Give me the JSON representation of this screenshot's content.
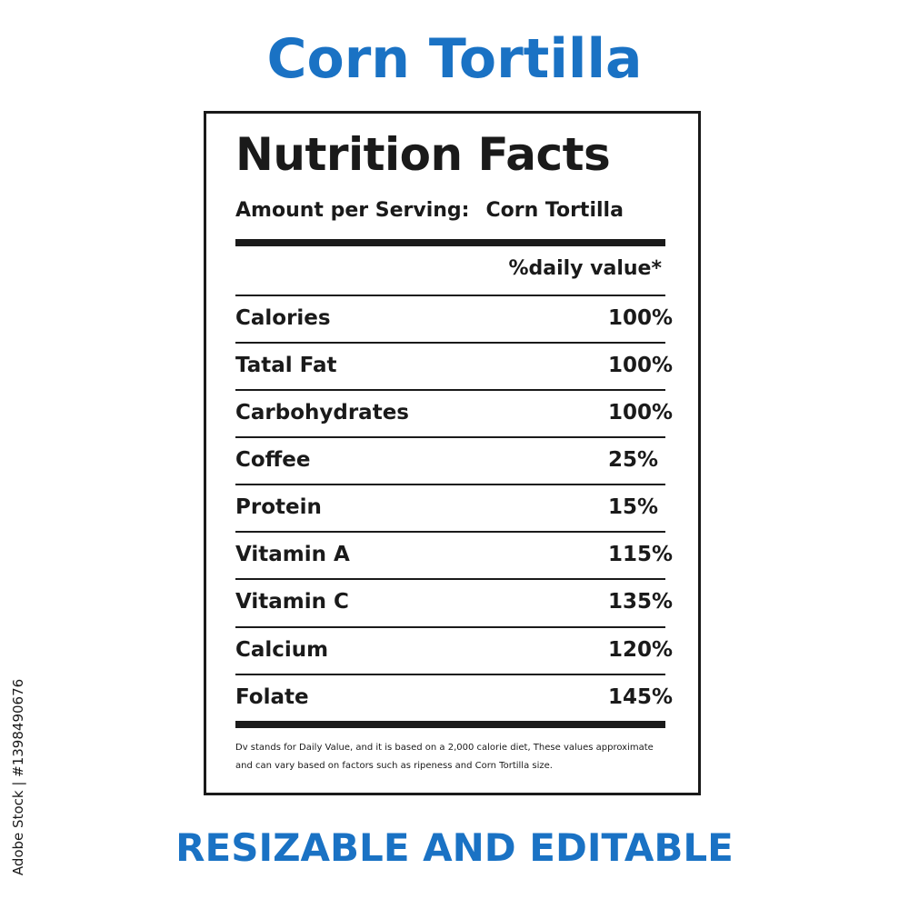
{
  "heading": "Corn Tortilla",
  "label": {
    "title": "Nutrition Facts",
    "serving_label": "Amount per Serving:",
    "serving_value": "Corn Tortilla",
    "dv_header": "%daily value*",
    "rows": [
      {
        "name": "Calories",
        "value": "100%"
      },
      {
        "name": "Tatal Fat",
        "value": "100%"
      },
      {
        "name": "Carbohydrates",
        "value": "100%"
      },
      {
        "name": "Coffee",
        "value": "25%"
      },
      {
        "name": "Protein",
        "value": "15%"
      },
      {
        "name": "Vitamin A",
        "value": "115%"
      },
      {
        "name": "Vitamin C",
        "value": "135%"
      },
      {
        "name": "Calcium",
        "value": "120%"
      },
      {
        "name": "Folate",
        "value": "145%"
      }
    ],
    "footnote_line1": "Dv stands for Daily Value, and it is based on a 2,000 calorie diet, These values approximate",
    "footnote_line2": "and can vary based on factors such as ripeness and Corn Tortilla size."
  },
  "banner": "RESIZABLE AND EDITABLE",
  "side_id": "Adobe Stock | #1398490676",
  "colors": {
    "accent": "#1a72c4",
    "text": "#1a1a1a"
  }
}
